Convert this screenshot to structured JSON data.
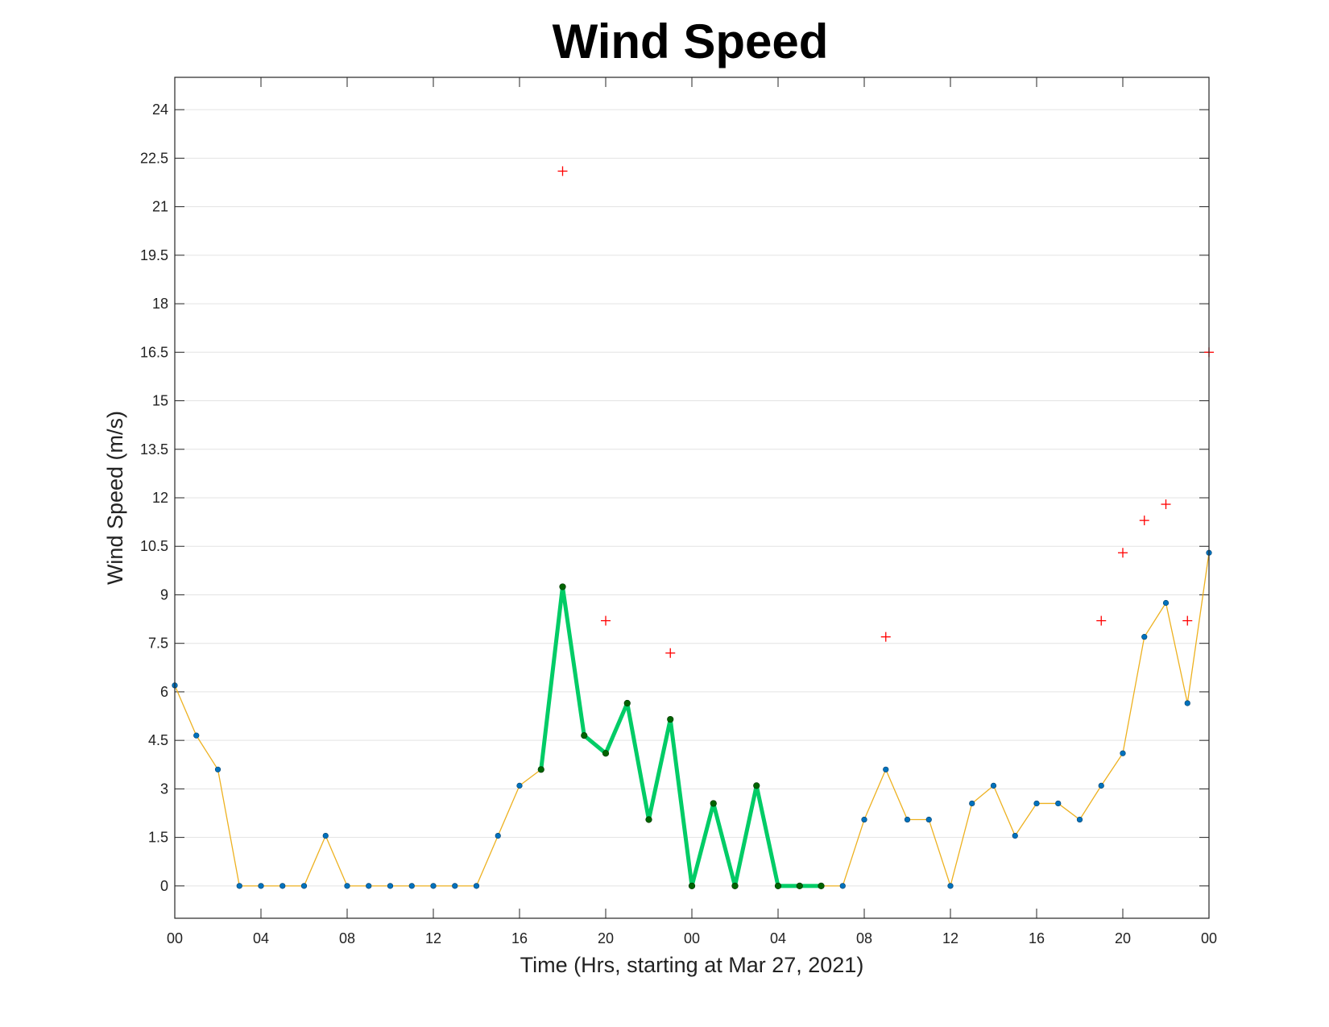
{
  "chart_data": {
    "type": "line",
    "title": "Wind Speed",
    "xlabel": "Time (Hrs, starting at Mar 27, 2021)",
    "ylabel": "Wind Speed (m/s)",
    "xlim": [
      0,
      48
    ],
    "ylim": [
      -1,
      25
    ],
    "grid": "horizontal",
    "xticks": [
      0,
      4,
      8,
      12,
      16,
      20,
      24,
      28,
      32,
      36,
      40,
      44,
      48
    ],
    "xtick_labels": [
      "00",
      "04",
      "08",
      "12",
      "16",
      "20",
      "00",
      "04",
      "08",
      "12",
      "16",
      "20",
      "00"
    ],
    "yticks": [
      0,
      1.5,
      3,
      4.5,
      6,
      7.5,
      9,
      10.5,
      12,
      13.5,
      15,
      16.5,
      18,
      19.5,
      21,
      22.5,
      24
    ],
    "ytick_labels": [
      "0",
      "1.5",
      "3",
      "4.5",
      "6",
      "7.5",
      "9",
      "10.5",
      "12",
      "13.5",
      "15",
      "16.5",
      "18",
      "19.5",
      "21",
      "22.5",
      "24"
    ],
    "colors": {
      "speed_line": "#EDB120",
      "speed_marker": "#0072BD",
      "highlight_line": "#00CC66",
      "highlight_marker": "#006400",
      "gust_marker": "#FF0000",
      "grid": "#E3E3E3",
      "axes": "#262626"
    },
    "series": [
      {
        "role": "speed",
        "x": [
          0,
          1,
          2,
          3,
          4,
          5,
          6,
          7,
          8,
          9,
          10,
          11,
          12,
          13,
          14,
          15,
          16,
          17,
          18,
          19,
          20,
          21,
          22,
          23,
          24,
          25,
          26,
          27,
          28,
          29,
          30,
          31,
          32,
          33,
          34,
          35,
          36,
          37,
          38,
          39,
          40,
          41,
          42,
          43,
          44,
          45,
          46,
          47,
          48
        ],
        "y": [
          6.2,
          4.65,
          3.6,
          0,
          0,
          0,
          0,
          1.55,
          0,
          0,
          0,
          0,
          0,
          0,
          0,
          1.55,
          3.1,
          3.6,
          9.25,
          4.65,
          4.1,
          5.65,
          2.05,
          5.15,
          0,
          2.55,
          0,
          3.1,
          0,
          0,
          0,
          0,
          2.05,
          3.6,
          2.05,
          2.05,
          0,
          2.55,
          3.1,
          1.55,
          2.55,
          2.55,
          2.05,
          3.1,
          4.1,
          7.7,
          8.75,
          5.65,
          10.3
        ]
      },
      {
        "role": "highlight",
        "x": [
          17,
          18,
          19,
          20,
          21,
          22,
          23,
          24,
          25,
          26,
          27,
          28,
          29,
          30
        ],
        "y": [
          3.6,
          9.25,
          4.65,
          4.1,
          5.65,
          2.05,
          5.15,
          0,
          2.55,
          0,
          3.1,
          0,
          0,
          0
        ]
      },
      {
        "role": "gust",
        "x": [
          18,
          20,
          23,
          33,
          43,
          44,
          45,
          46,
          47,
          48
        ],
        "y": [
          22.1,
          8.2,
          7.2,
          7.7,
          8.2,
          10.3,
          11.3,
          11.8,
          8.2,
          16.5
        ]
      }
    ]
  }
}
